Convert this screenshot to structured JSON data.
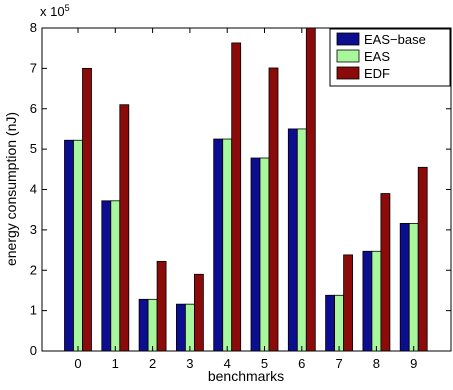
{
  "chart_data": {
    "type": "bar",
    "categories": [
      "0",
      "1",
      "2",
      "3",
      "4",
      "5",
      "6",
      "7",
      "8",
      "9"
    ],
    "series": [
      {
        "name": "EAS−base",
        "color": "#0d0d8f",
        "values": [
          522000,
          372000,
          128000,
          116000,
          525000,
          478000,
          550000,
          138000,
          247000,
          316000
        ]
      },
      {
        "name": "EAS",
        "color": "#a8f79c",
        "values": [
          522000,
          372000,
          128000,
          116000,
          525000,
          478000,
          550000,
          138000,
          247000,
          316000
        ]
      },
      {
        "name": "EDF",
        "color": "#8b0a0a",
        "values": [
          700000,
          610000,
          222000,
          190000,
          763000,
          701000,
          800000,
          238000,
          390000,
          455000
        ]
      }
    ],
    "xlabel": "benchmarks",
    "ylabel": "energy consumption (nJ)",
    "ylim": [
      0,
      800000
    ],
    "yticks": [
      "0",
      "1",
      "2",
      "3",
      "4",
      "5",
      "6",
      "7",
      "8"
    ],
    "y_exponent_base": "x 10",
    "y_exponent_power": "5",
    "legend_position": "top-right",
    "grid": false
  }
}
